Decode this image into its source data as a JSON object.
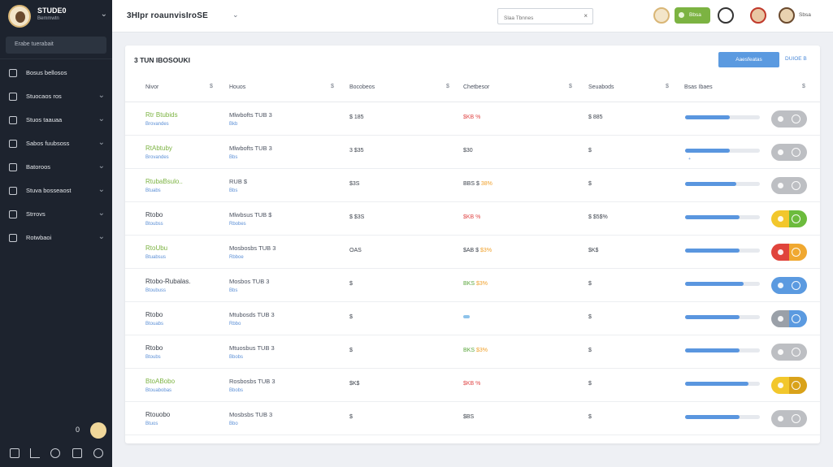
{
  "colors": {
    "sidebar_bg": "#1d232e",
    "accent_blue": "#5b9ae0",
    "accent_green": "#7cb342",
    "accent_red": "#e04848",
    "accent_orange": "#f0a02a"
  },
  "sidebar": {
    "brand_name": "STUDE0",
    "brand_sub": "Bemmwtn",
    "search_label": "Erabe tuerabait",
    "items": [
      {
        "label": "Bosus bellosos",
        "icon": "home-icon",
        "has_chevron": false
      },
      {
        "label": "Stuocaos ros",
        "icon": "folder-icon",
        "has_chevron": true
      },
      {
        "label": "Stuos taauaa",
        "icon": "users-icon",
        "has_chevron": true
      },
      {
        "label": "Sabos fuubsoss",
        "icon": "chart-icon",
        "has_chevron": true
      },
      {
        "label": "Batoroos",
        "icon": "calendar-icon",
        "has_chevron": true
      },
      {
        "label": "Stuva bosseaost",
        "icon": "tag-icon",
        "has_chevron": true
      },
      {
        "label": "Strrovs",
        "icon": "settings-icon",
        "has_chevron": true
      },
      {
        "label": "Rotwbaoi",
        "icon": "mail-icon",
        "has_chevron": true
      }
    ],
    "bottom_count": "0",
    "tools": [
      "home-icon",
      "user-icon",
      "globe-icon",
      "file-icon",
      "help-icon"
    ]
  },
  "topbar": {
    "title": "3HIpr roaunvisIroSE",
    "search_placeholder": "Slaa Tbnnes",
    "pill_label": "Bbsa",
    "user_label": "Sbsa"
  },
  "card": {
    "title": "3 TUN IBOSOUKI",
    "primary_button": "Aaesfeatas",
    "link_button": "DUIOE B",
    "columns": [
      {
        "label": "Nivor",
        "sort": "$"
      },
      {
        "label": "Houos",
        "sort": "$"
      },
      {
        "label": "Bocobeos",
        "sort": "$"
      },
      {
        "label": "Chetbesor",
        "sort": "$"
      },
      {
        "label": "Seuabods",
        "sort": "$"
      },
      {
        "label": "Bsas Ibaes",
        "sort": "$"
      }
    ],
    "rows": [
      {
        "name": "Rtr Btubids",
        "name_color": "green",
        "sub": "Brovandes",
        "house": "Mlwbofts TUB 3",
        "house_sub": "Bkb",
        "price": "$ 185",
        "change": "$KB %",
        "change_accent": "",
        "change_color": "red",
        "score": "$ 885",
        "bar": 0.6,
        "bar_tick": "",
        "toggle": "grey"
      },
      {
        "name": "RtAbtuby",
        "name_color": "green",
        "sub": "Brovandes",
        "house": "Mlwbofts TUB 3",
        "house_sub": "Bbs",
        "price": "3  $35",
        "change": "$30",
        "change_accent": "",
        "change_color": "grey",
        "score": "$",
        "bar": 0.6,
        "bar_tick": "+",
        "toggle": "grey"
      },
      {
        "name": "RtubaBsulo..",
        "name_color": "green",
        "sub": "Btuabs",
        "house": "RUB $",
        "house_sub": "Bbs",
        "price": "$3S",
        "change": "BBS $",
        "change_accent": "38%",
        "change_color": "grey",
        "score": "$",
        "bar": 0.68,
        "bar_tick": "",
        "toggle": "grey"
      },
      {
        "name": "Rtobo",
        "name_color": "dark",
        "sub": "Btoubss",
        "house": "Mlwbsus TUB $",
        "house_sub": "Rbobes",
        "price": "$  $3S",
        "change": "$KB %",
        "change_accent": "",
        "change_color": "red",
        "score": "$  $5$%",
        "bar": 0.73,
        "bar_tick": "",
        "toggle": "yg"
      },
      {
        "name": "RtoUbu",
        "name_color": "green",
        "sub": "Btuabsus",
        "house": "Mosbosbs TUB 3",
        "house_sub": "Rbboe",
        "price": "OAS",
        "change": "$AB $",
        "change_accent": "$3%",
        "change_color": "grey",
        "score": "$K$",
        "bar": 0.73,
        "bar_tick": "",
        "toggle": "ro"
      },
      {
        "name": "Rtobo-Rubalas.",
        "name_color": "dark",
        "sub": "Btoubuss",
        "house": "Mosbos TUB 3",
        "house_sub": "Bbs",
        "price": "$",
        "change": "BKS",
        "change_accent": "$3%",
        "change_color": "green",
        "score": "$",
        "bar": 0.78,
        "bar_tick": "",
        "toggle": "blue"
      },
      {
        "name": "Rtobo",
        "name_color": "dark",
        "sub": "Btouabs",
        "house": "Mtubosds TUB 3",
        "house_sub": "Rbbo",
        "price": "$",
        "change": "",
        "change_accent": "",
        "change_color": "grey",
        "score": "$",
        "bar": 0.73,
        "bar_tick": "",
        "toggle": "gb"
      },
      {
        "name": "Rtobo",
        "name_color": "dark",
        "sub": "Btoubs",
        "house": "Mtuosbus TUB 3",
        "house_sub": "Bbobs",
        "price": "$",
        "change": "BKS",
        "change_accent": "$3%",
        "change_color": "green",
        "score": "$",
        "bar": 0.73,
        "bar_tick": "",
        "toggle": "grey"
      },
      {
        "name": "BtoABobo",
        "name_color": "green",
        "sub": "Btouabobas",
        "house": "Rosbosbs TUB 3",
        "house_sub": "Bbobs",
        "price": "$K$",
        "change": "$KB %",
        "change_accent": "",
        "change_color": "red",
        "score": "$",
        "bar": 0.85,
        "bar_tick": "",
        "toggle": "yy"
      },
      {
        "name": "Rtouobo",
        "name_color": "dark",
        "sub": "Btuos",
        "house": "Mosbsbs TUB 3",
        "house_sub": "Bbo",
        "price": "$",
        "change": "$BS",
        "change_accent": "",
        "change_color": "grey",
        "score": "$",
        "bar": 0.73,
        "bar_tick": "",
        "toggle": "grey"
      }
    ]
  }
}
